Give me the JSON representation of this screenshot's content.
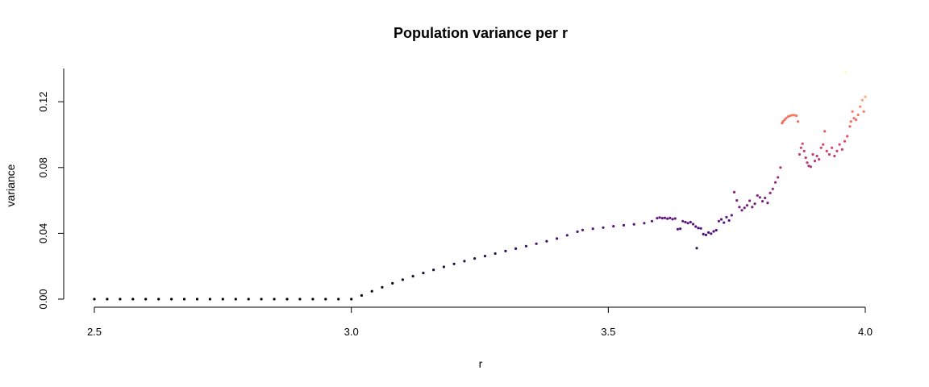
{
  "chart_data": {
    "type": "scatter",
    "title": "Population variance per r",
    "xlabel": "r",
    "ylabel": "variance",
    "xlim": [
      2.5,
      4.0
    ],
    "ylim": [
      0.0,
      0.14
    ],
    "xticks": [
      "2.5",
      "3.0",
      "3.5",
      "4.0"
    ],
    "yticks": [
      "0.00",
      "0.04",
      "0.08",
      "0.12"
    ],
    "grid": false,
    "legend": "none",
    "color_scale": "magma (color encodes variance: black = low, pale yellow = high)",
    "series": [
      {
        "points": [
          [
            2.5,
            0.0
          ],
          [
            2.525,
            0.0
          ],
          [
            2.55,
            0.0
          ],
          [
            2.575,
            0.0
          ],
          [
            2.6,
            0.0
          ],
          [
            2.625,
            0.0
          ],
          [
            2.65,
            0.0
          ],
          [
            2.675,
            0.0
          ],
          [
            2.7,
            0.0
          ],
          [
            2.725,
            0.0
          ],
          [
            2.75,
            0.0
          ],
          [
            2.775,
            0.0
          ],
          [
            2.8,
            0.0
          ],
          [
            2.825,
            0.0
          ],
          [
            2.85,
            0.0
          ],
          [
            2.875,
            0.0
          ],
          [
            2.9,
            0.0
          ],
          [
            2.925,
            0.0
          ],
          [
            2.95,
            0.0
          ],
          [
            2.975,
            0.0
          ],
          [
            3.0,
            0.0
          ],
          [
            3.02,
            0.0022
          ],
          [
            3.04,
            0.0048
          ],
          [
            3.06,
            0.0072
          ],
          [
            3.08,
            0.0096
          ],
          [
            3.1,
            0.0118
          ],
          [
            3.12,
            0.0139
          ],
          [
            3.14,
            0.0159
          ],
          [
            3.16,
            0.0178
          ],
          [
            3.18,
            0.0196
          ],
          [
            3.2,
            0.0214
          ],
          [
            3.22,
            0.0231
          ],
          [
            3.24,
            0.0247
          ],
          [
            3.26,
            0.0262
          ],
          [
            3.28,
            0.0277
          ],
          [
            3.3,
            0.0292
          ],
          [
            3.32,
            0.0307
          ],
          [
            3.34,
            0.0322
          ],
          [
            3.36,
            0.0337
          ],
          [
            3.38,
            0.0352
          ],
          [
            3.4,
            0.0368
          ],
          [
            3.42,
            0.0388
          ],
          [
            3.44,
            0.041
          ],
          [
            3.45,
            0.042
          ],
          [
            3.47,
            0.0428
          ],
          [
            3.49,
            0.0435
          ],
          [
            3.51,
            0.0443
          ],
          [
            3.53,
            0.0449
          ],
          [
            3.55,
            0.0455
          ],
          [
            3.57,
            0.0462
          ],
          [
            3.585,
            0.0474
          ],
          [
            3.595,
            0.0492
          ],
          [
            3.6,
            0.0496
          ],
          [
            3.605,
            0.0492
          ],
          [
            3.61,
            0.0494
          ],
          [
            3.615,
            0.0489
          ],
          [
            3.62,
            0.0493
          ],
          [
            3.625,
            0.0486
          ],
          [
            3.63,
            0.049
          ],
          [
            3.635,
            0.0425
          ],
          [
            3.64,
            0.0428
          ],
          [
            3.645,
            0.0474
          ],
          [
            3.65,
            0.0468
          ],
          [
            3.655,
            0.0462
          ],
          [
            3.66,
            0.0468
          ],
          [
            3.665,
            0.0456
          ],
          [
            3.67,
            0.0441
          ],
          [
            3.672,
            0.031
          ],
          [
            3.675,
            0.0432
          ],
          [
            3.68,
            0.043
          ],
          [
            3.685,
            0.0395
          ],
          [
            3.69,
            0.039
          ],
          [
            3.695,
            0.0405
          ],
          [
            3.7,
            0.0398
          ],
          [
            3.705,
            0.0412
          ],
          [
            3.71,
            0.0419
          ],
          [
            3.715,
            0.0474
          ],
          [
            3.72,
            0.0485
          ],
          [
            3.725,
            0.0465
          ],
          [
            3.73,
            0.0498
          ],
          [
            3.735,
            0.0478
          ],
          [
            3.74,
            0.051
          ],
          [
            3.745,
            0.065
          ],
          [
            3.75,
            0.06
          ],
          [
            3.755,
            0.056
          ],
          [
            3.76,
            0.054
          ],
          [
            3.765,
            0.0555
          ],
          [
            3.77,
            0.057
          ],
          [
            3.775,
            0.0598
          ],
          [
            3.78,
            0.056
          ],
          [
            3.785,
            0.058
          ],
          [
            3.79,
            0.063
          ],
          [
            3.795,
            0.0618
          ],
          [
            3.8,
            0.0595
          ],
          [
            3.805,
            0.0615
          ],
          [
            3.81,
            0.0585
          ],
          [
            3.815,
            0.0645
          ],
          [
            3.82,
            0.067
          ],
          [
            3.825,
            0.071
          ],
          [
            3.83,
            0.074
          ],
          [
            3.835,
            0.08
          ],
          [
            3.838,
            0.107
          ],
          [
            3.84,
            0.108
          ],
          [
            3.843,
            0.109
          ],
          [
            3.846,
            0.11
          ],
          [
            3.85,
            0.111
          ],
          [
            3.854,
            0.1115
          ],
          [
            3.858,
            0.1118
          ],
          [
            3.862,
            0.1118
          ],
          [
            3.866,
            0.1115
          ],
          [
            3.869,
            0.108
          ],
          [
            3.872,
            0.088
          ],
          [
            3.875,
            0.092
          ],
          [
            3.878,
            0.0945
          ],
          [
            3.881,
            0.09
          ],
          [
            3.884,
            0.086
          ],
          [
            3.887,
            0.083
          ],
          [
            3.89,
            0.081
          ],
          [
            3.894,
            0.0805
          ],
          [
            3.898,
            0.088
          ],
          [
            3.902,
            0.084
          ],
          [
            3.906,
            0.087
          ],
          [
            3.91,
            0.085
          ],
          [
            3.914,
            0.092
          ],
          [
            3.918,
            0.094
          ],
          [
            3.921,
            0.102
          ],
          [
            3.925,
            0.09
          ],
          [
            3.93,
            0.088
          ],
          [
            3.935,
            0.092
          ],
          [
            3.94,
            0.087
          ],
          [
            3.945,
            0.09
          ],
          [
            3.95,
            0.094
          ],
          [
            3.955,
            0.091
          ],
          [
            3.96,
            0.096
          ],
          [
            3.965,
            0.099
          ],
          [
            3.97,
            0.105
          ],
          [
            3.972,
            0.108
          ],
          [
            3.975,
            0.114
          ],
          [
            3.978,
            0.11
          ],
          [
            3.982,
            0.109
          ],
          [
            3.986,
            0.112
          ],
          [
            3.99,
            0.117
          ],
          [
            3.994,
            0.121
          ],
          [
            3.997,
            0.114
          ],
          [
            4.0,
            0.123
          ],
          [
            3.962,
            0.138
          ]
        ]
      }
    ]
  }
}
